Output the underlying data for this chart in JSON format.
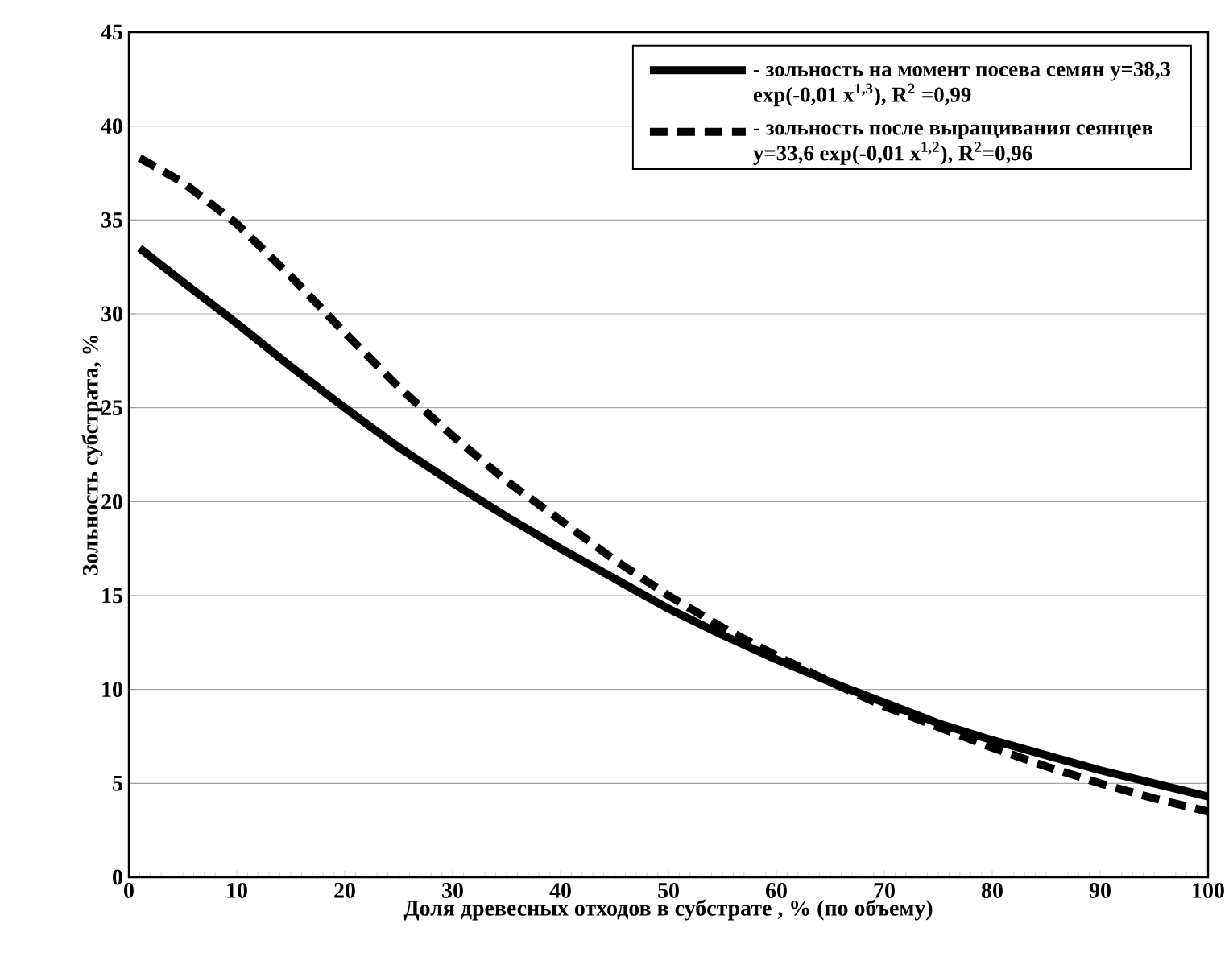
{
  "chart_data": {
    "type": "line",
    "xlabel": "Доля древесных отходов в субстрате , % (по объему)",
    "ylabel": "Зольность субстрата, %",
    "xlim": [
      0,
      100
    ],
    "ylim": [
      0,
      45
    ],
    "xticks": [
      0,
      10,
      20,
      30,
      40,
      50,
      60,
      70,
      80,
      90,
      100
    ],
    "yticks": [
      0,
      5,
      10,
      15,
      20,
      25,
      30,
      35,
      40,
      45
    ],
    "grid": "y",
    "legend": "top right",
    "series": [
      {
        "name": "- зольность на момент посева семян y=38,3 exp(-0,01 x$^{1,3}$), R$^{2}$ =0,99",
        "color": "#000000",
        "line_style": "solid",
        "x": [
          1,
          5,
          10,
          15,
          20,
          25,
          30,
          35,
          40,
          45,
          50,
          55,
          60,
          65,
          70,
          75,
          80,
          85,
          90,
          95,
          100
        ],
        "values": [
          33.5,
          31.7,
          29.5,
          27.2,
          25.0,
          22.9,
          21.0,
          19.2,
          17.5,
          15.9,
          14.3,
          12.9,
          11.6,
          10.4,
          9.3,
          8.2,
          7.3,
          6.5,
          5.7,
          5.0,
          4.3
        ]
      },
      {
        "name": "- зольность после выращивания сеянцев y=33,6 exp(-0,01 x$^{1,2}$), R$^{2}$=0,96",
        "color": "#000000",
        "line_style": "dashed",
        "x": [
          1,
          5,
          10,
          15,
          20,
          25,
          30,
          35,
          40,
          45,
          50,
          55,
          60,
          65,
          70,
          75,
          80,
          85,
          90,
          95,
          100
        ],
        "values": [
          38.3,
          37.0,
          34.8,
          32.0,
          29.0,
          26.1,
          23.5,
          21.1,
          19.0,
          16.9,
          15.0,
          13.3,
          11.8,
          10.4,
          9.1,
          8.0,
          6.9,
          5.9,
          5.0,
          4.2,
          3.5
        ]
      }
    ]
  }
}
